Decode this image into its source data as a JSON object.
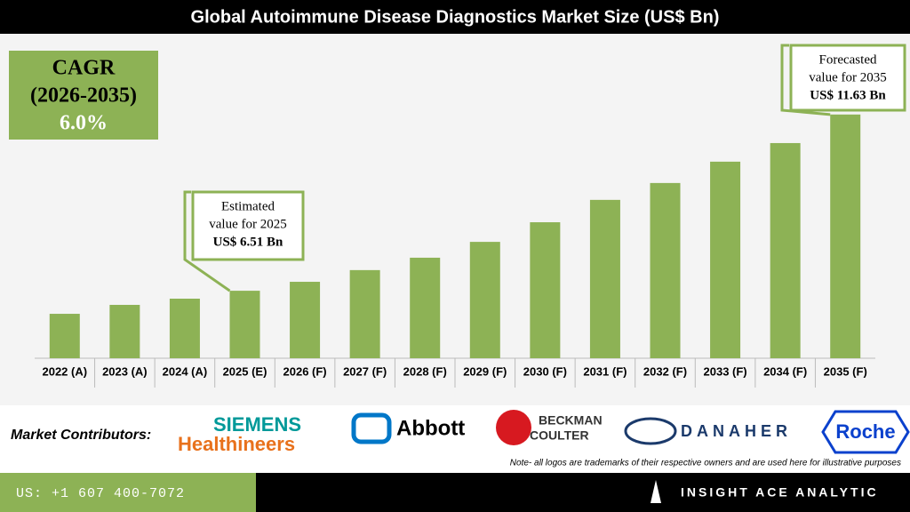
{
  "chart_data": {
    "type": "bar",
    "title": "Global Autoimmune Disease Diagnostics Market Size (US$ Bn)",
    "categories": [
      "2022 (A)",
      "2023 (A)",
      "2024 (A)",
      "2025 (E)",
      "2026 (F)",
      "2027 (F)",
      "2028 (F)",
      "2029 (F)",
      "2030 (F)",
      "2031 (F)",
      "2032 (F)",
      "2033 (F)",
      "2034 (F)",
      "2035 (F)"
    ],
    "values": [
      5.84,
      6.1,
      6.28,
      6.51,
      6.77,
      7.11,
      7.47,
      7.93,
      8.5,
      9.15,
      9.64,
      10.26,
      10.8,
      11.63
    ],
    "color": "#8db255",
    "ylim": [
      4.55,
      12.4
    ],
    "cagr": {
      "title": "CAGR",
      "period": "(2026-2035)",
      "value": "6.0%"
    },
    "annotations": [
      {
        "lines": [
          "Estimated",
          "value for 2025",
          "US$ 6.51 Bn"
        ],
        "index": 3
      },
      {
        "lines": [
          "Forecasted",
          "value for 2035",
          "US$ 11.63 Bn"
        ],
        "index": 13
      }
    ]
  },
  "contributors": {
    "label": "Market Contributors:",
    "logos": [
      "SIEMENS",
      "Healthineers",
      "Abbott",
      "BECKMAN",
      "COULTER",
      "DANAHER",
      "Roche"
    ],
    "note": "Note- all logos are trademarks of their respective owners and are used here for illustrative purposes"
  },
  "footer": {
    "phone": "US: +1 607 400-7072",
    "brand": "INSIGHT ACE ANALYTIC"
  }
}
